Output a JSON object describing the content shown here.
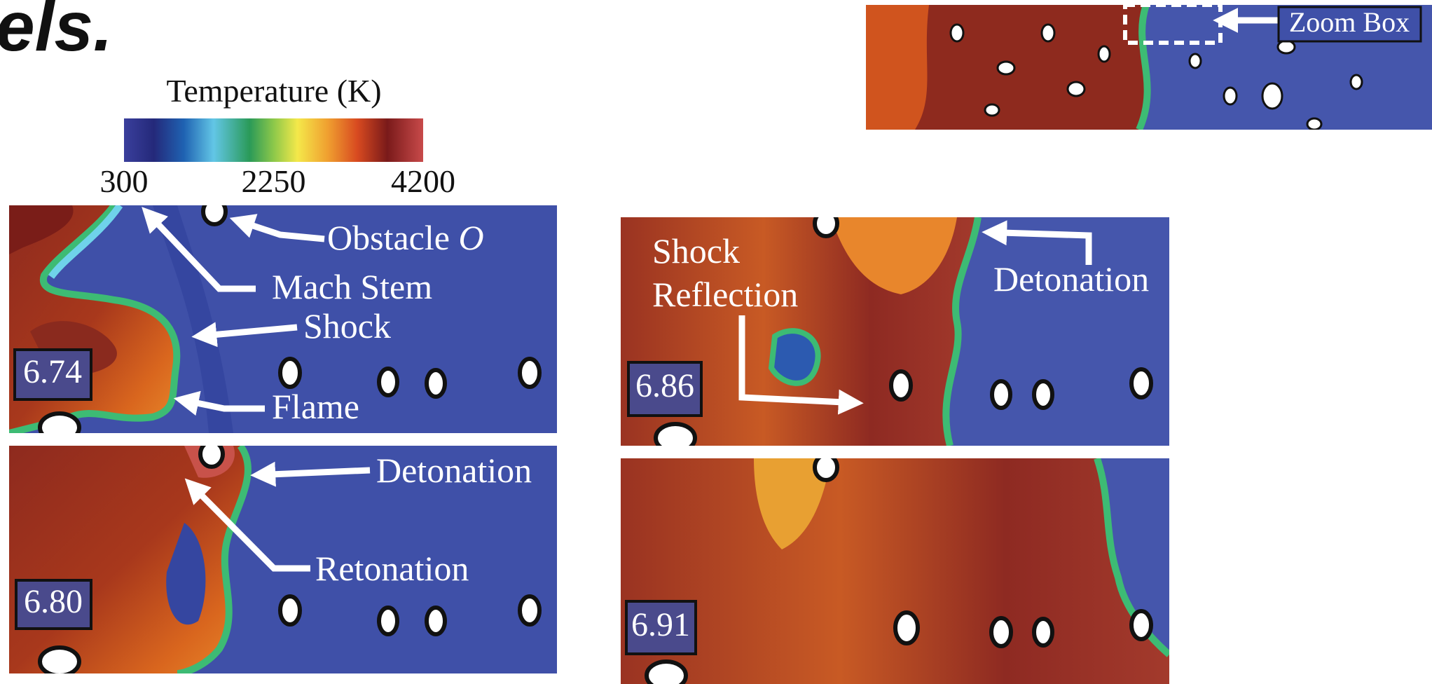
{
  "header": {
    "title_fragment": "els."
  },
  "colorbar": {
    "title": "Temperature (K)",
    "lim": [
      300,
      4200
    ],
    "ticks": [
      300,
      2250,
      4200
    ]
  },
  "panels": [
    {
      "time": "6.74",
      "annotations": [
        "Obstacle",
        "O",
        "Mach Stem",
        "Shock",
        "Flame"
      ]
    },
    {
      "time": "6.80",
      "annotations": [
        "Detonation",
        "Retonation"
      ]
    },
    {
      "time": "6.86",
      "annotations": [
        "Shock",
        "Reflection",
        "Detonation"
      ]
    },
    {
      "time": "6.91",
      "annotations": []
    }
  ],
  "inset": {
    "label": "Zoom Box"
  }
}
